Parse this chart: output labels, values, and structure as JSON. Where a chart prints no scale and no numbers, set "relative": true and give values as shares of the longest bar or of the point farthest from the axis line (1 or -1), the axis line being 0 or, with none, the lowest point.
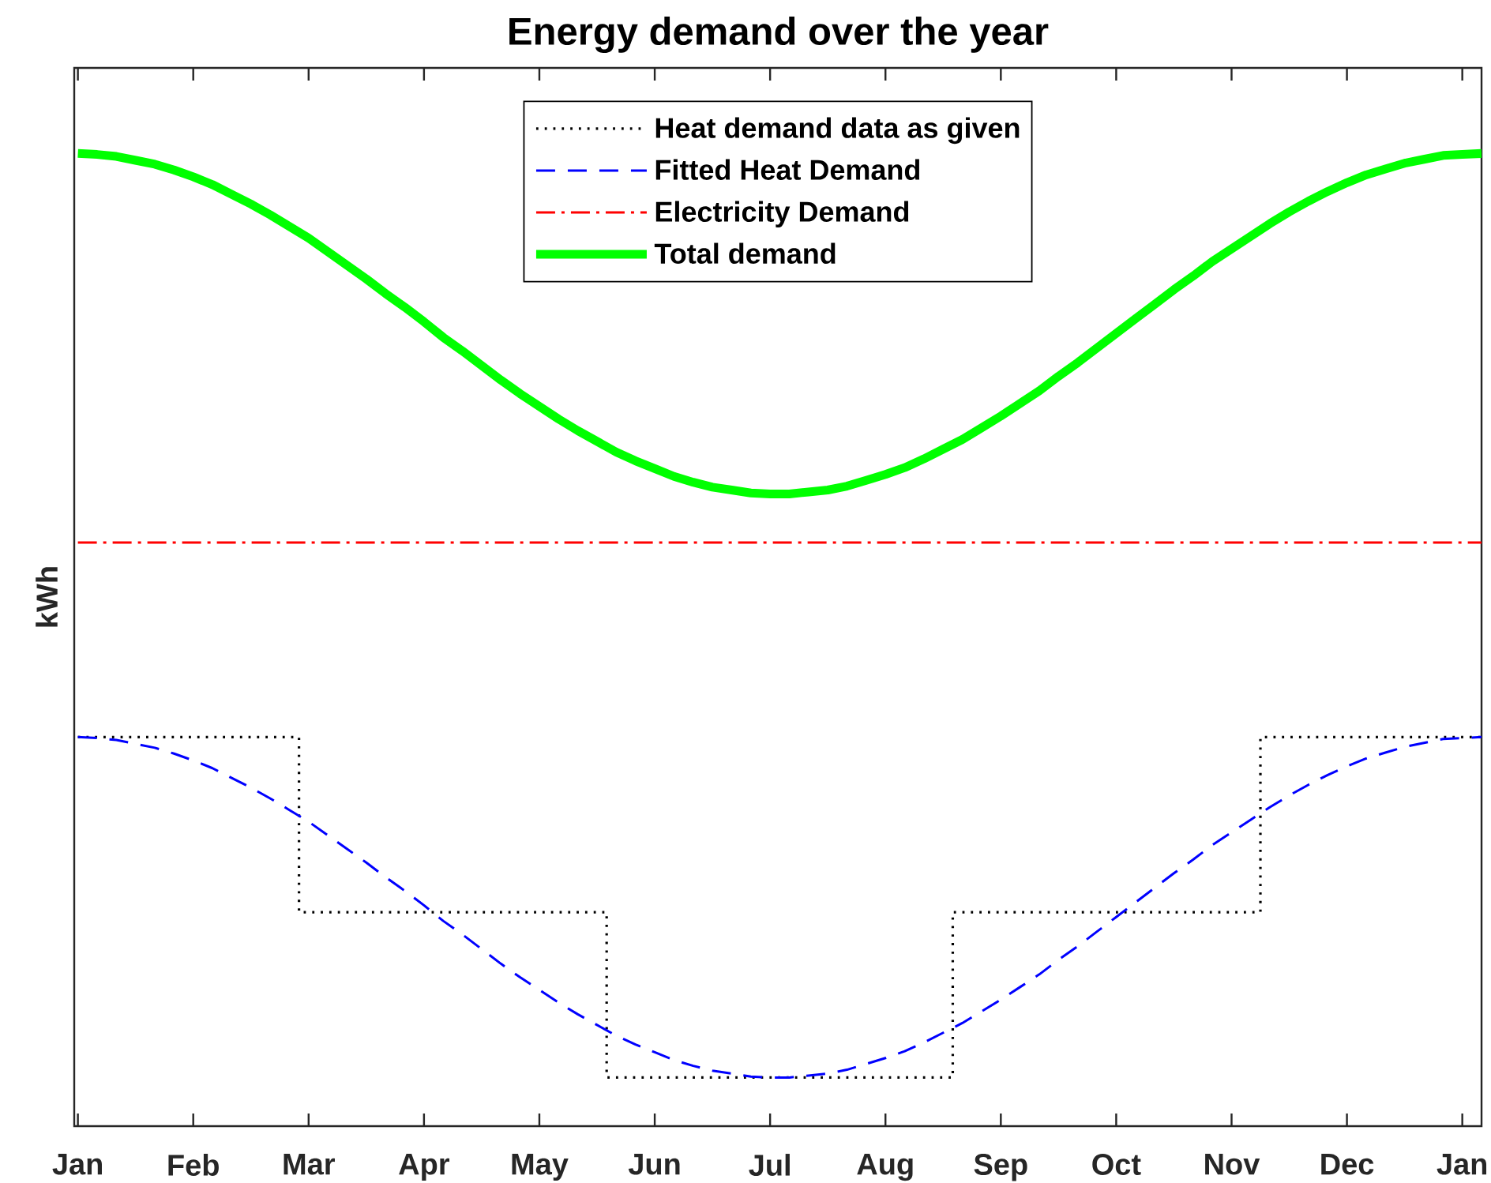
{
  "chart_data": {
    "type": "line",
    "title": "Energy demand over the year",
    "ylabel": "kWh",
    "relative": true,
    "categories": [
      "Jan",
      null,
      null,
      null,
      null,
      null,
      "Feb",
      null,
      null,
      null,
      null,
      null,
      "Mar",
      null,
      null,
      null,
      null,
      null,
      "Apr",
      null,
      null,
      null,
      null,
      null,
      "May",
      null,
      null,
      null,
      null,
      null,
      "Jun",
      null,
      null,
      null,
      null,
      null,
      "Jul",
      null,
      null,
      null,
      null,
      null,
      "Aug",
      null,
      null,
      null,
      null,
      null,
      "Sep",
      null,
      null,
      null,
      null,
      null,
      "Oct",
      null,
      null,
      null,
      null,
      null,
      "Nov",
      null,
      null,
      null,
      null,
      null,
      "Dec",
      null,
      null,
      null,
      null,
      null,
      "Jan",
      null
    ],
    "legend": "top",
    "series": [
      {
        "name": "Heat demand data as given",
        "type": "step",
        "color": "#000000",
        "line_style": "dotted",
        "values": [
          0.4,
          0.4,
          0.4,
          0.4,
          0.4,
          0.4,
          0.4,
          0.4,
          0.4,
          0.4,
          0.4,
          0.4,
          0.22,
          0.22,
          0.22,
          0.22,
          0.22,
          0.22,
          0.22,
          0.22,
          0.22,
          0.22,
          0.22,
          0.22,
          0.22,
          0.22,
          0.22,
          0.22,
          0.05,
          0.05,
          0.05,
          0.05,
          0.05,
          0.05,
          0.05,
          0.05,
          0.05,
          0.05,
          0.05,
          0.05,
          0.05,
          0.05,
          0.05,
          0.05,
          0.05,
          0.05,
          0.22,
          0.22,
          0.22,
          0.22,
          0.22,
          0.22,
          0.22,
          0.22,
          0.22,
          0.22,
          0.22,
          0.22,
          0.22,
          0.22,
          0.22,
          0.22,
          0.4,
          0.4,
          0.4,
          0.4,
          0.4,
          0.4,
          0.4,
          0.4,
          0.4,
          0.4,
          0.4,
          0.4
        ]
      },
      {
        "name": "Fitted Heat Demand",
        "color": "#0000ff",
        "line_style": "dashed",
        "values": [
          0.4,
          0.399,
          0.397,
          0.393,
          0.389,
          0.383,
          0.376,
          0.368,
          0.358,
          0.348,
          0.337,
          0.325,
          0.313,
          0.299,
          0.285,
          0.271,
          0.256,
          0.242,
          0.227,
          0.211,
          0.197,
          0.182,
          0.167,
          0.153,
          0.14,
          0.127,
          0.115,
          0.104,
          0.093,
          0.084,
          0.076,
          0.068,
          0.062,
          0.057,
          0.054,
          0.051,
          0.05,
          0.05,
          0.052,
          0.054,
          0.058,
          0.064,
          0.07,
          0.077,
          0.086,
          0.096,
          0.106,
          0.118,
          0.13,
          0.143,
          0.156,
          0.171,
          0.185,
          0.2,
          0.215,
          0.23,
          0.245,
          0.26,
          0.274,
          0.289,
          0.302,
          0.315,
          0.328,
          0.34,
          0.351,
          0.361,
          0.37,
          0.378,
          0.384,
          0.39,
          0.394,
          0.398,
          0.399,
          0.4
        ]
      },
      {
        "name": "Electricity Demand",
        "color": "#ff0000",
        "line_style": "dashdot",
        "values": [
          0.6,
          0.6,
          0.6,
          0.6,
          0.6,
          0.6,
          0.6,
          0.6,
          0.6,
          0.6,
          0.6,
          0.6,
          0.6,
          0.6,
          0.6,
          0.6,
          0.6,
          0.6,
          0.6,
          0.6,
          0.6,
          0.6,
          0.6,
          0.6,
          0.6,
          0.6,
          0.6,
          0.6,
          0.6,
          0.6,
          0.6,
          0.6,
          0.6,
          0.6,
          0.6,
          0.6,
          0.6,
          0.6,
          0.6,
          0.6,
          0.6,
          0.6,
          0.6,
          0.6,
          0.6,
          0.6,
          0.6,
          0.6,
          0.6,
          0.6,
          0.6,
          0.6,
          0.6,
          0.6,
          0.6,
          0.6,
          0.6,
          0.6,
          0.6,
          0.6,
          0.6,
          0.6,
          0.6,
          0.6,
          0.6,
          0.6,
          0.6,
          0.6,
          0.6,
          0.6,
          0.6,
          0.6,
          0.6,
          0.6
        ]
      },
      {
        "name": "Total demand",
        "color": "#00ff00",
        "line_style": "solid",
        "values": [
          1.0,
          0.999,
          0.997,
          0.993,
          0.989,
          0.983,
          0.976,
          0.968,
          0.958,
          0.948,
          0.937,
          0.925,
          0.913,
          0.899,
          0.885,
          0.871,
          0.856,
          0.842,
          0.827,
          0.811,
          0.797,
          0.782,
          0.767,
          0.753,
          0.74,
          0.727,
          0.715,
          0.704,
          0.693,
          0.684,
          0.676,
          0.668,
          0.662,
          0.657,
          0.654,
          0.651,
          0.65,
          0.65,
          0.652,
          0.654,
          0.658,
          0.664,
          0.67,
          0.677,
          0.686,
          0.696,
          0.706,
          0.718,
          0.73,
          0.743,
          0.756,
          0.771,
          0.785,
          0.8,
          0.815,
          0.83,
          0.845,
          0.86,
          0.874,
          0.889,
          0.902,
          0.915,
          0.928,
          0.94,
          0.951,
          0.961,
          0.97,
          0.978,
          0.984,
          0.99,
          0.994,
          0.998,
          0.999,
          1.0
        ]
      }
    ]
  }
}
